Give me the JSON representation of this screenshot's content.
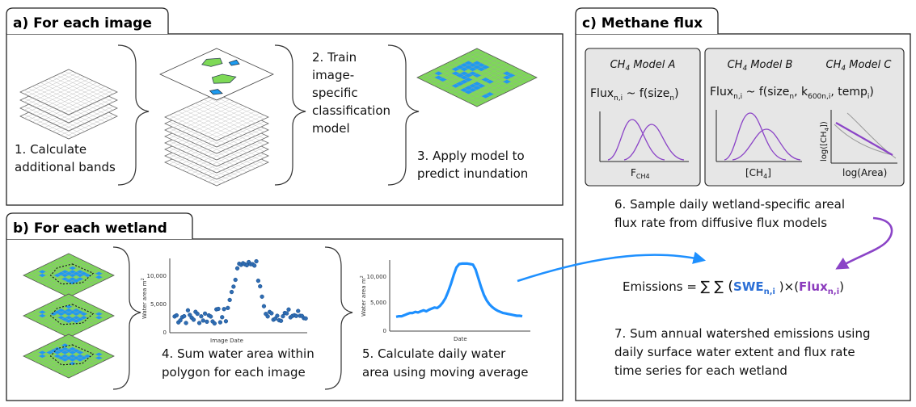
{
  "colors": {
    "water": "#1d9bf0",
    "land": "#7ed957",
    "grid": "#9aa39a",
    "dot": "#2f6db3",
    "curve": "#1e90ff",
    "purple": "#8b44c7",
    "panel_gray": "#e6e6e6",
    "swe_blue": "#2b6fd6",
    "flux_purple": "#8b3bbd"
  },
  "panel_a": {
    "title": "a) For each image",
    "step1": [
      "1. Calculate",
      "additional bands"
    ],
    "step2": [
      "2. Train",
      "image-",
      "specific",
      "classification",
      "model"
    ],
    "step3": [
      "3. Apply model to",
      "predict inundation"
    ]
  },
  "panel_b": {
    "title": "b) For each wetland",
    "chart1": {
      "ylabel": "Water area m",
      "xlabel": "Image Date",
      "yticks": [
        "0",
        "5,000",
        "10,000"
      ]
    },
    "chart2": {
      "ylabel": "Water area m",
      "xlabel": "Date",
      "yticks": [
        "0",
        "5,000",
        "10,000"
      ]
    },
    "step4": [
      "4. Sum water area within",
      "polygon for each image"
    ],
    "step5": [
      "5. Calculate daily water",
      "area using moving average"
    ]
  },
  "panel_c": {
    "title": "c) Methane flux",
    "model_a": {
      "title": "CH",
      "title_sub": "4",
      "title_rest": " Model A",
      "formula": "Flux",
      "formula_sub": "n,i",
      "formula_rest": " ~ f(size",
      "formula_sub2": "n",
      "formula_end": ")",
      "xlabel": "F",
      "xlabel_sub": "CH4"
    },
    "model_b": {
      "title": "CH",
      "title_sub": "4",
      "title_rest": " Model B",
      "xlabel": "[CH",
      "xlabel_sub": "4",
      "xlabel_end": "]"
    },
    "model_c": {
      "title": "CH",
      "title_sub": "4",
      "title_rest": " Model C",
      "ylabel": "log([CH",
      "ylabel_sub": "4",
      "ylabel_end": "])",
      "xlabel": "log(Area)"
    },
    "formula_bc": {
      "a": "Flux",
      "a_sub": "n,i",
      "b": " ~ f(size",
      "b_sub": "n",
      "c": ", k",
      "c_sub": "600n,i",
      "d": ", temp",
      "d_sub": "i",
      "e": ")"
    },
    "step6": [
      "6. Sample daily wetland-specific areal",
      "flux rate from diffusive flux models"
    ],
    "emissions": {
      "lhs": "Emissions = ",
      "sums": "∑ ∑ (",
      "swe": "SWE",
      "swe_sub": "n,i",
      "mid": " )×(",
      "flux": "Flux",
      "flux_sub": "n,i",
      "end": ")"
    },
    "step7": [
      "7. Sum annual watershed emissions using",
      "daily surface water extent and flux rate",
      "time series for each wetland"
    ]
  }
}
